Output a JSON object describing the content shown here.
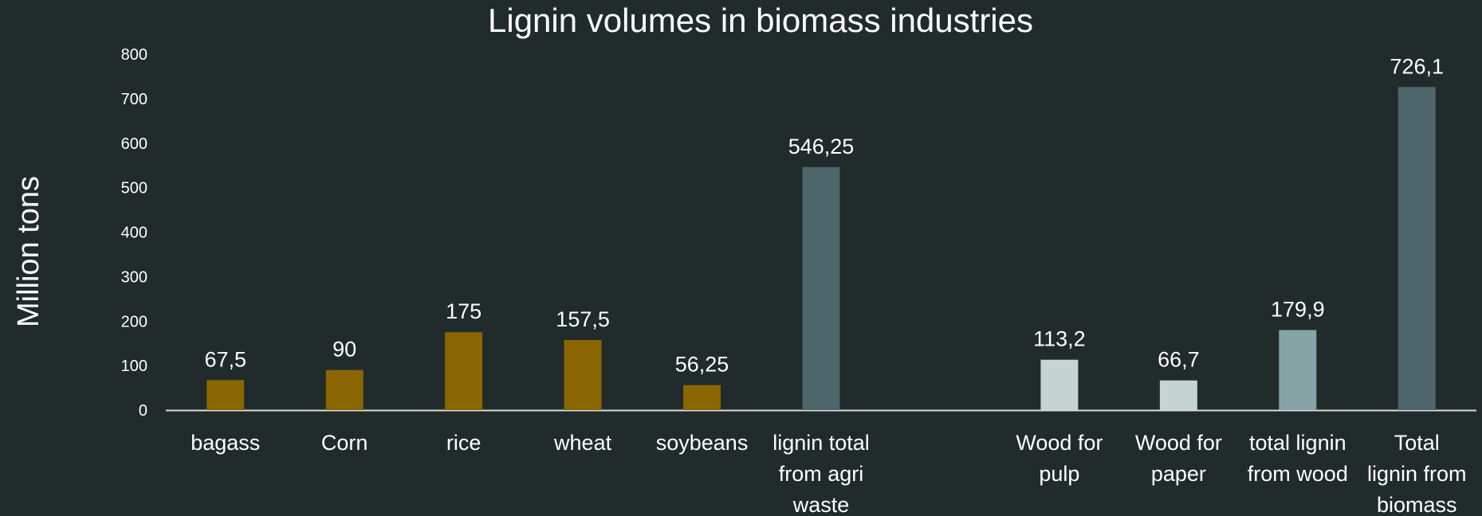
{
  "chart_data": {
    "type": "bar",
    "title": "Lignin volumes in biomass industries",
    "xlabel": "",
    "ylabel": "Million tons",
    "ylim": [
      0,
      800
    ],
    "yticks": [
      0,
      100,
      200,
      300,
      400,
      500,
      600,
      700,
      800
    ],
    "grid": false,
    "legend": "none",
    "categories": [
      "bagass",
      "Corn",
      "rice",
      "wheat",
      "soybeans",
      "lignin total from agri waste",
      "",
      "Wood for pulp",
      "Wood for paper",
      "total lignin from wood",
      "Total lignin from biomass"
    ],
    "category_lines": [
      [
        "bagass"
      ],
      [
        "Corn"
      ],
      [
        "rice"
      ],
      [
        "wheat"
      ],
      [
        "soybeans"
      ],
      [
        "lignin total",
        "from agri",
        "waste"
      ],
      [],
      [
        "Wood for",
        "pulp"
      ],
      [
        "Wood for",
        "paper"
      ],
      [
        "total lignin",
        "from wood"
      ],
      [
        "Total",
        "lignin from",
        "biomass"
      ]
    ],
    "values": [
      67.5,
      90,
      175,
      157.5,
      56.25,
      546.25,
      null,
      113.2,
      66.7,
      179.9,
      726.1
    ],
    "data_labels": [
      "67,5",
      "90",
      "175",
      "157,5",
      "56,25",
      "546,25",
      "",
      "113,2",
      "66,7",
      "179,9",
      "726,1"
    ],
    "colors": [
      "#8a6600",
      "#8a6600",
      "#8a6600",
      "#8a6600",
      "#8a6600",
      "#4d666b",
      "",
      "#c5d3d3",
      "#c5d3d3",
      "#86a3a6",
      "#4d666b"
    ]
  }
}
